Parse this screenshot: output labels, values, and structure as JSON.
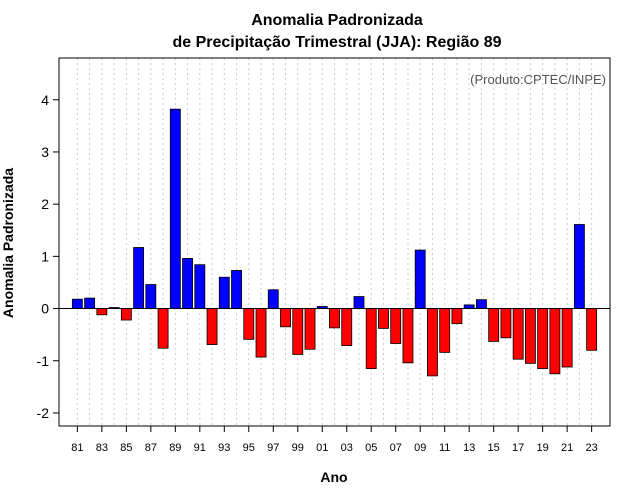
{
  "chart_data": {
    "type": "bar",
    "title": "Anomalia Padronizada",
    "subtitle": "de Precipitação Trimestral (JJA): Região 89",
    "xlabel": "Ano",
    "ylabel": "Anomalia Padronizada",
    "credit": "(Produto:CPTEC/INPE)",
    "ylim": [
      -2.25,
      4.8
    ],
    "yticks": [
      -2,
      -1,
      0,
      1,
      2,
      3,
      4
    ],
    "xtick_labels": [
      "81",
      "83",
      "85",
      "87",
      "89",
      "91",
      "93",
      "95",
      "97",
      "99",
      "01",
      "03",
      "05",
      "07",
      "09",
      "11",
      "13",
      "15",
      "17",
      "19",
      "21",
      "23"
    ],
    "categories": [
      "1981",
      "1982",
      "1983",
      "1984",
      "1985",
      "1986",
      "1987",
      "1988",
      "1989",
      "1990",
      "1991",
      "1992",
      "1993",
      "1994",
      "1995",
      "1996",
      "1997",
      "1998",
      "1999",
      "2000",
      "2001",
      "2002",
      "2003",
      "2004",
      "2005",
      "2006",
      "2007",
      "2008",
      "2009",
      "2010",
      "2011",
      "2012",
      "2013",
      "2014",
      "2015",
      "2016",
      "2017",
      "2018",
      "2019",
      "2020",
      "2021",
      "2022",
      "2023"
    ],
    "values": [
      0.18,
      0.2,
      -0.12,
      0.02,
      -0.22,
      1.17,
      0.46,
      -0.76,
      3.82,
      0.96,
      0.84,
      -0.69,
      0.6,
      0.73,
      -0.59,
      -0.93,
      0.36,
      -0.35,
      -0.88,
      -0.78,
      0.04,
      -0.37,
      -0.71,
      0.23,
      -1.15,
      -0.38,
      -0.67,
      -1.04,
      1.12,
      -1.29,
      -0.84,
      -0.29,
      0.07,
      0.17,
      -0.63,
      -0.56,
      -0.97,
      -1.05,
      -1.15,
      -1.25,
      -1.12,
      1.61,
      -0.8
    ],
    "colors": {
      "positive": "#0000ff",
      "negative": "#ff0000",
      "grid": "#cccccc"
    },
    "grid": true,
    "zero_line": true
  }
}
